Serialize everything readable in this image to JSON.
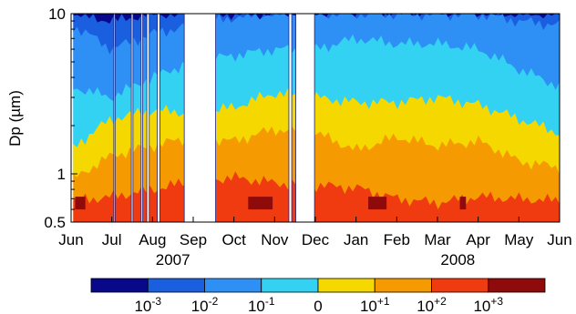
{
  "chart_data": {
    "type": "heatmap",
    "ylabel": "Dp (µm)",
    "y_scale": "log",
    "ylim": [
      0.5,
      10
    ],
    "y_ticks": [
      {
        "value": 10,
        "label": "10"
      },
      {
        "value": 1,
        "label": "1"
      },
      {
        "value": 0.5,
        "label": "0.5"
      }
    ],
    "x_ticks": [
      "Jun",
      "Jul",
      "Aug",
      "Sep",
      "Oct",
      "Nov",
      "Dec",
      "Jan",
      "Feb",
      "Mar",
      "Apr",
      "May",
      "Jun"
    ],
    "year_labels": [
      {
        "label": "2007",
        "after_tick": 2
      },
      {
        "label": "2008",
        "after_tick": 9
      }
    ],
    "colorbar": {
      "colors": [
        "#08088a",
        "#1a5fe0",
        "#2e8ff5",
        "#33d2f2",
        "#f5d800",
        "#f59a00",
        "#f03a10",
        "#8f0a0a"
      ],
      "tick_labels": [
        {
          "base": "10",
          "exp": "-3"
        },
        {
          "base": "10",
          "exp": "-2"
        },
        {
          "base": "10",
          "exp": "-1"
        },
        {
          "base": "0",
          "exp": ""
        },
        {
          "base": "10",
          "exp": "+1"
        },
        {
          "base": "10",
          "exp": "+2"
        },
        {
          "base": "10",
          "exp": "+3"
        }
      ]
    },
    "data_gaps_months": [
      [
        1.05,
        1.08
      ],
      [
        1.48,
        1.52
      ],
      [
        1.72,
        1.76
      ],
      [
        1.86,
        1.92
      ],
      [
        2.12,
        2.18
      ],
      [
        2.78,
        3.55
      ],
      [
        5.35,
        5.42
      ],
      [
        5.52,
        5.98
      ]
    ],
    "data_extent_months": [
      0.05,
      12.0
    ],
    "layer_boundaries_dp": [
      {
        "label": "10^+2 / 10^+3",
        "from_month": 0,
        "values": [
          0.68,
          0.72,
          0.8,
          0.9,
          0.95,
          0.88,
          0.85,
          0.82,
          0.7,
          0.66,
          0.72,
          0.7,
          0.68
        ]
      },
      {
        "label": "10^+1 / 10^+2",
        "from_month": 0,
        "values": [
          0.9,
          1.3,
          1.5,
          1.7,
          1.6,
          1.9,
          1.8,
          1.4,
          1.7,
          1.5,
          1.6,
          1.2,
          1.1
        ]
      },
      {
        "label": "0 / 10^+1",
        "from_month": 0,
        "values": [
          1.4,
          2.2,
          2.5,
          2.4,
          2.6,
          3.2,
          3.0,
          2.8,
          2.8,
          3.0,
          2.7,
          2.2,
          1.8
        ]
      },
      {
        "label": "10^-1 / 0",
        "from_month": 0,
        "values": [
          3.5,
          3.0,
          4.0,
          5.0,
          5.5,
          6.0,
          6.0,
          7.0,
          6.5,
          6.5,
          6.0,
          4.5,
          3.5
        ]
      },
      {
        "label": "10^-2 / 10^-1",
        "from_month": 0,
        "values": [
          8.5,
          6.0,
          7.5,
          8.5,
          9.5,
          10,
          10,
          10,
          10,
          10,
          10,
          9.0,
          8.5
        ]
      },
      {
        "label": "10^-3 / 10^-2",
        "from_month": 0,
        "values": [
          10,
          9.0,
          10,
          10,
          10,
          10,
          10,
          10,
          10,
          10,
          10,
          10,
          10
        ]
      }
    ]
  }
}
